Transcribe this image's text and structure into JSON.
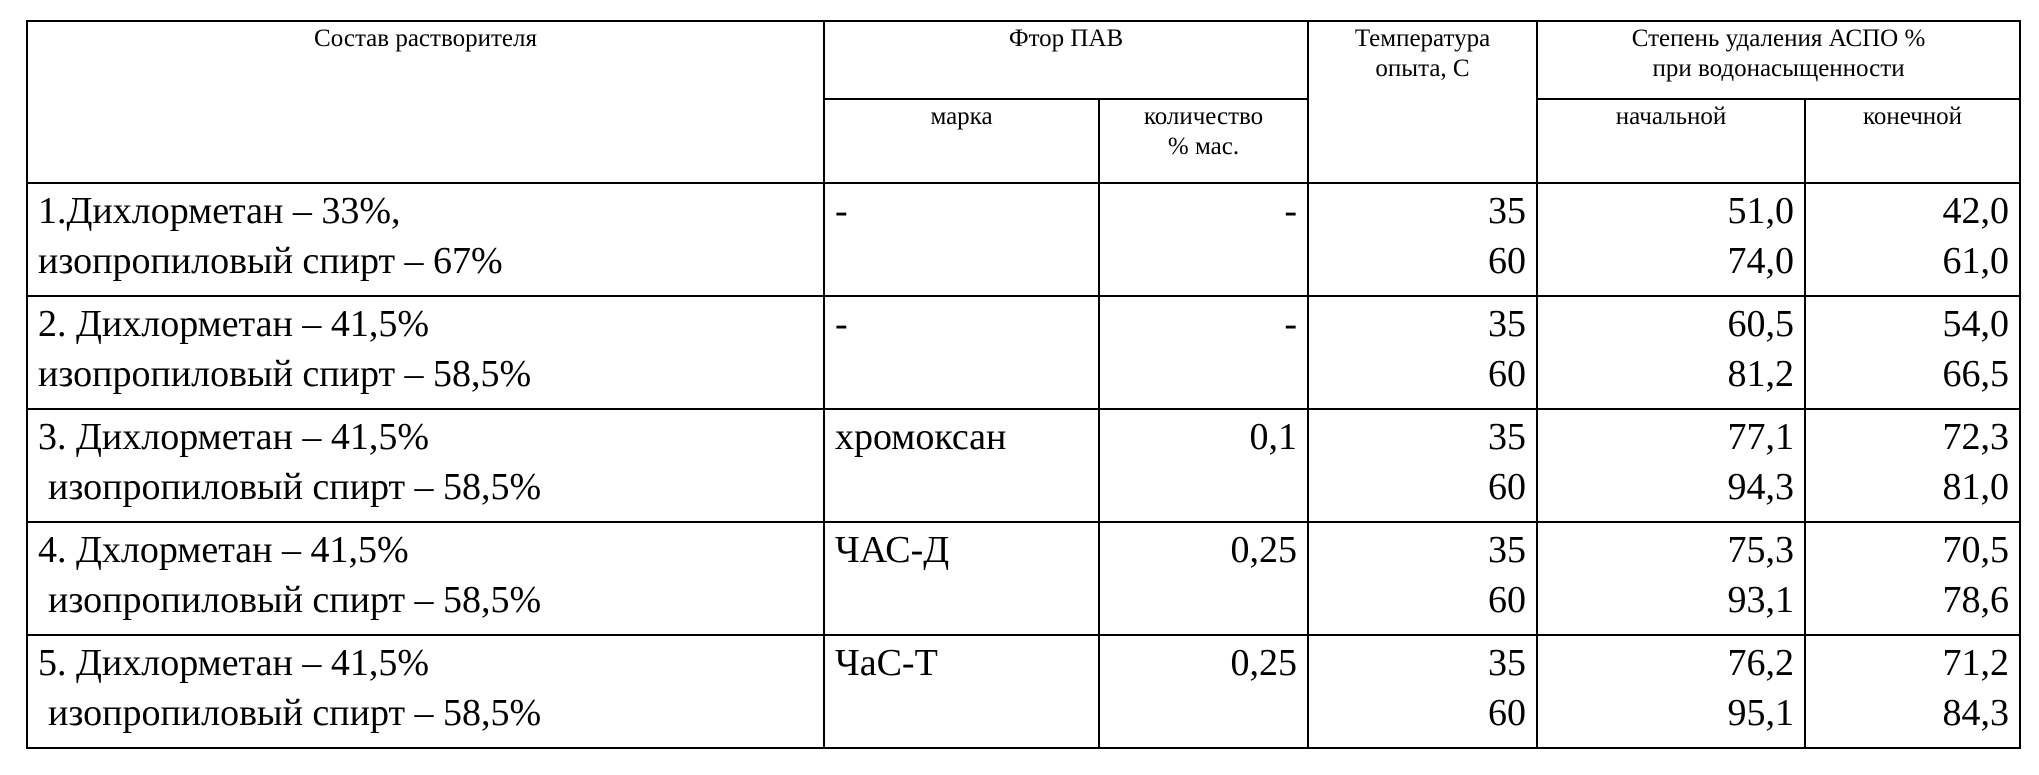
{
  "table": {
    "header": {
      "composition": "Состав растворителя",
      "surfactant": "Фтор ПАВ",
      "brand": "марка",
      "amount": [
        "количество",
        "% мас."
      ],
      "temperature": [
        "Температура",
        "опыта, С"
      ],
      "removal": [
        "Степень удаления АСПО %",
        "при водонасыщенности"
      ],
      "initial": "начальной",
      "final": "конечной"
    },
    "rows": [
      {
        "composition": [
          "1.Дихлорметан – 33%,",
          "изопропиловый спирт – 67%"
        ],
        "brand": "-",
        "amount": "-",
        "temperature": [
          "35",
          "60"
        ],
        "initial": [
          "51,0",
          "74,0"
        ],
        "final": [
          "42,0",
          "61,0"
        ]
      },
      {
        "composition": [
          "2. Дихлорметан – 41,5%",
          "изопропиловый спирт – 58,5%"
        ],
        "brand": "-",
        "amount": "-",
        "temperature": [
          "35",
          "60"
        ],
        "initial": [
          "60,5",
          "81,2"
        ],
        "final": [
          "54,0",
          "66,5"
        ]
      },
      {
        "composition": [
          "3. Дихлорметан – 41,5%",
          "изопропиловый спирт – 58,5%"
        ],
        "brand": "хромоксан",
        "amount": "0,1",
        "temperature": [
          "35",
          "60"
        ],
        "initial": [
          "77,1",
          "94,3"
        ],
        "final": [
          "72,3",
          "81,0"
        ]
      },
      {
        "composition": [
          "4. Дхлорметан – 41,5%",
          "изопропиловый спирт – 58,5%"
        ],
        "brand": "ЧАС-Д",
        "amount": "0,25",
        "temperature": [
          "35",
          "60"
        ],
        "initial": [
          "75,3",
          "93,1"
        ],
        "final": [
          "70,5",
          "78,6"
        ]
      },
      {
        "composition": [
          "5. Дихлорметан – 41,5%",
          "изопропиловый спирт – 58,5%"
        ],
        "brand": "ЧаС-Т",
        "amount": "0,25",
        "temperature": [
          "35",
          "60"
        ],
        "initial": [
          "76,2",
          "95,1"
        ],
        "final": [
          "71,2",
          "84,3"
        ]
      }
    ]
  }
}
